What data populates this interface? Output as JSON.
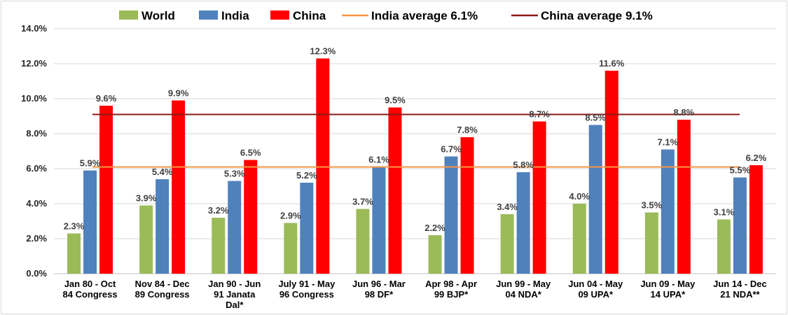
{
  "chart_data": {
    "type": "bar",
    "categories": [
      [
        "Jan 80 - Oct",
        "84 Congress"
      ],
      [
        "Nov 84 - Dec",
        "89 Congress"
      ],
      [
        "Jan 90 - Jun",
        "91 Janata",
        "Dal*"
      ],
      [
        "July 91 - May",
        "96 Congress"
      ],
      [
        "Jun 96 - Mar",
        "98 DF*"
      ],
      [
        "Apr 98 - Apr",
        "99 BJP*"
      ],
      [
        "Jun 99 - May",
        "04 NDA*"
      ],
      [
        "Jun 04 - May",
        "09 UPA*"
      ],
      [
        "Jun 09 - May",
        "14 UPA*"
      ],
      [
        "Jun 14 - Dec",
        "21 NDA**"
      ]
    ],
    "series": [
      {
        "name": "World",
        "color": "#9BBB59",
        "values": [
          2.3,
          3.9,
          3.2,
          2.9,
          3.7,
          2.2,
          3.4,
          4.0,
          3.5,
          3.1
        ]
      },
      {
        "name": "India",
        "color": "#4F81BD",
        "values": [
          5.9,
          5.4,
          5.3,
          5.2,
          6.1,
          6.7,
          5.8,
          8.5,
          7.1,
          5.5
        ]
      },
      {
        "name": "China",
        "color": "#FF0000",
        "values": [
          9.6,
          9.9,
          6.5,
          12.3,
          9.5,
          7.8,
          8.7,
          11.6,
          8.8,
          6.2
        ]
      }
    ],
    "reference_lines": [
      {
        "name": "India average 6.1%",
        "value": 6.1,
        "color": "#F79646"
      },
      {
        "name": "China average 9.1%",
        "value": 9.1,
        "color": "#8B1A1A"
      }
    ],
    "ylim": [
      0,
      14
    ],
    "yticks": [
      0,
      2,
      4,
      6,
      8,
      10,
      12,
      14
    ],
    "y_format": "percent_1dp",
    "grid": true,
    "legend_position": "top",
    "title": "",
    "xlabel": "",
    "ylabel": ""
  }
}
